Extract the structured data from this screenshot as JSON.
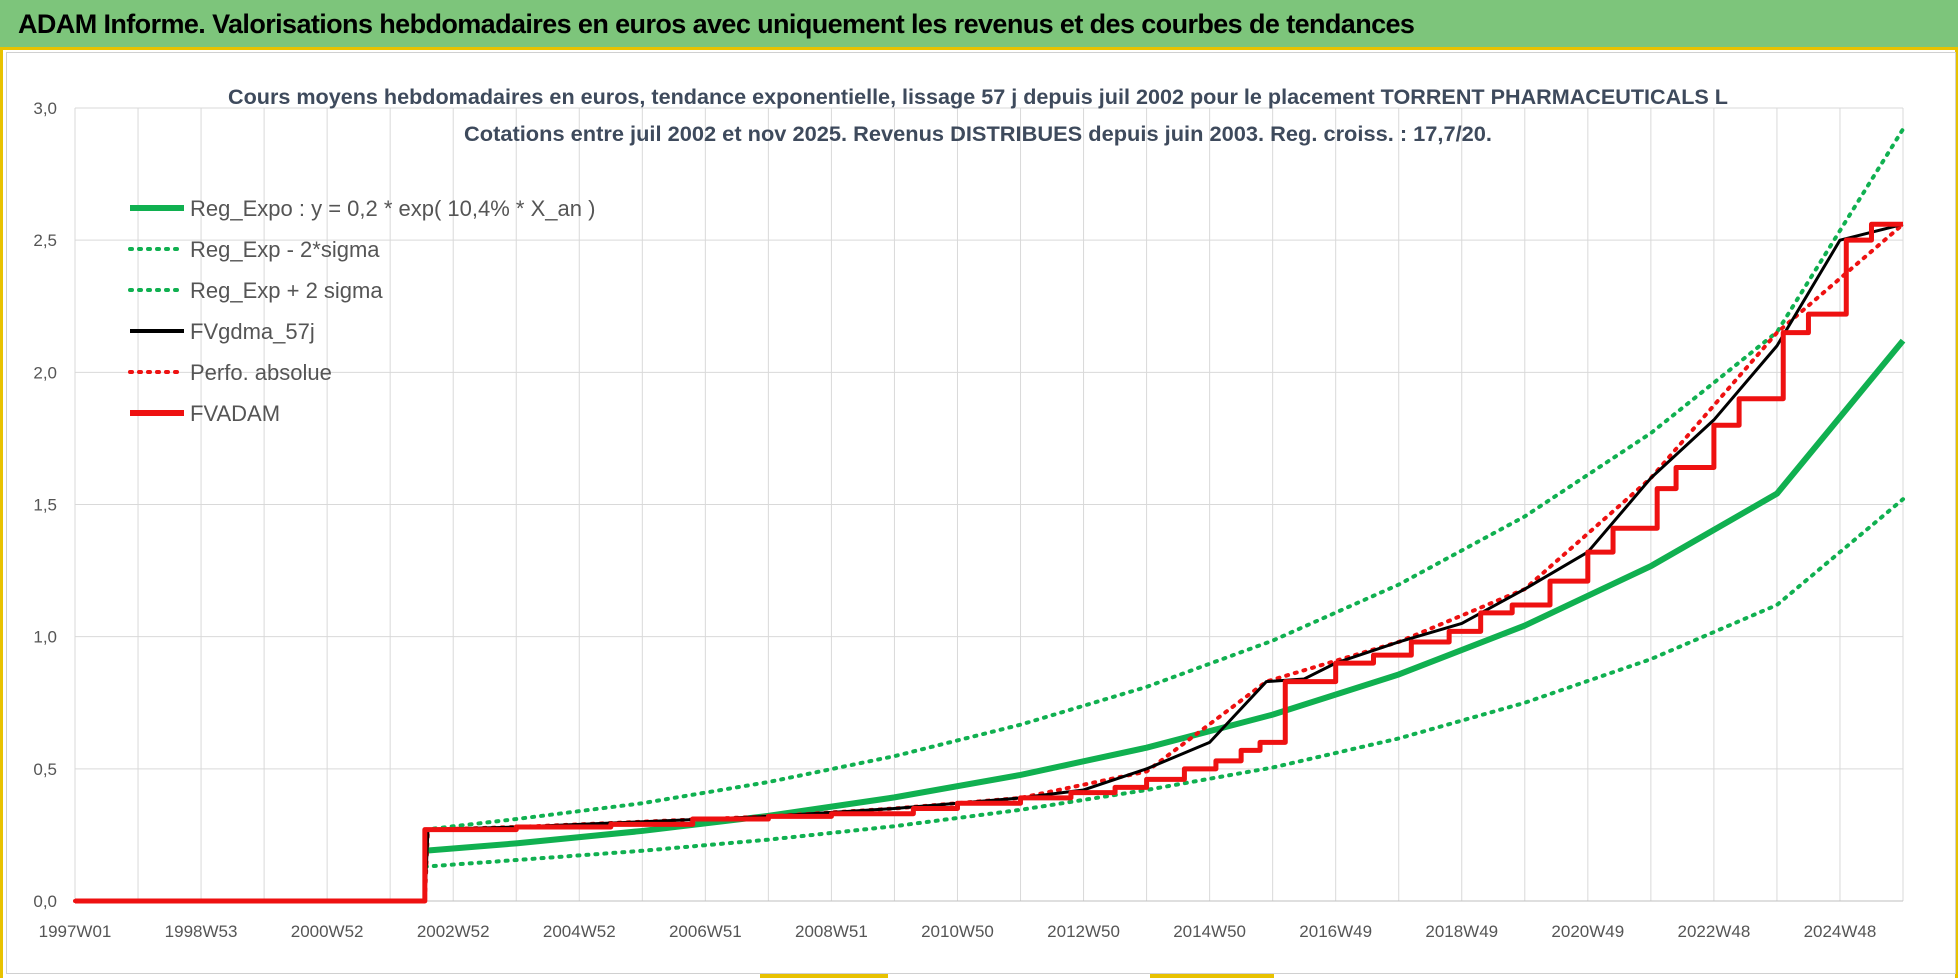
{
  "header": {
    "title": "ADAM Informe. Valorisations hebdomadaires en euros avec uniquement les revenus et des courbes de tendances"
  },
  "colors": {
    "header_bg": "#7dc57b",
    "accent_yellow": "#e8c200",
    "green": "#10b050",
    "red": "#ee1111",
    "black": "#000000",
    "title_text": "#3e4a5c",
    "grid": "#d9d9d9"
  },
  "chart_data": {
    "type": "line",
    "title": "Cours moyens hebdomadaires en euros, tendance exponentielle, lissage 57 j depuis juil 2002 pour le placement TORRENT PHARMACEUTICALS L",
    "subtitle": "Cotations entre juil 2002 et nov 2025. Revenus DISTRIBUES depuis juin 2003. Reg. croiss. : 17,7/20.",
    "xlabel": "",
    "ylabel": "",
    "x_unit": "year",
    "xlim": [
      1997.0,
      2026.0
    ],
    "ylim": [
      0,
      3.0
    ],
    "y_ticks": [
      "0,0",
      "0,5",
      "1,0",
      "1,5",
      "2,0",
      "2,5",
      "3,0"
    ],
    "y_tick_values": [
      0,
      0.5,
      1.0,
      1.5,
      2.0,
      2.5,
      3.0
    ],
    "x_tick_labels": [
      "1997W01",
      "1998W53",
      "2000W52",
      "2002W52",
      "2004W52",
      "2006W51",
      "2008W51",
      "2010W50",
      "2012W50",
      "2014W50",
      "2016W49",
      "2018W49",
      "2020W49",
      "2022W48",
      "2024W48"
    ],
    "x_tick_values": [
      1997.0,
      1999.0,
      2001.0,
      2003.0,
      2005.0,
      2007.0,
      2009.0,
      2011.0,
      2013.0,
      2015.0,
      2017.0,
      2019.0,
      2021.0,
      2023.0,
      2025.0
    ],
    "grid": true,
    "legend_position": "top-left",
    "series": [
      {
        "name": "Reg_Expo : y = 0,2 * exp( 10,4% *  X_an )",
        "style": "solid-thick",
        "color": "#10b050",
        "points": [
          [
            2002.55,
            0.19
          ],
          [
            2004,
            0.218
          ],
          [
            2006,
            0.265
          ],
          [
            2008,
            0.322
          ],
          [
            2010,
            0.392
          ],
          [
            2012,
            0.477
          ],
          [
            2014,
            0.58
          ],
          [
            2016,
            0.705
          ],
          [
            2018,
            0.857
          ],
          [
            2020,
            1.042
          ],
          [
            2022,
            1.267
          ],
          [
            2024,
            1.541
          ],
          [
            2026,
            2.12
          ]
        ]
      },
      {
        "name": "Reg_Exp - 2*sigma",
        "style": "dotted",
        "color": "#10b050",
        "points": [
          [
            2002.55,
            0.13
          ],
          [
            2004,
            0.155
          ],
          [
            2006,
            0.19
          ],
          [
            2008,
            0.232
          ],
          [
            2010,
            0.283
          ],
          [
            2012,
            0.345
          ],
          [
            2014,
            0.42
          ],
          [
            2016,
            0.505
          ],
          [
            2018,
            0.615
          ],
          [
            2020,
            0.75
          ],
          [
            2022,
            0.915
          ],
          [
            2024,
            1.12
          ],
          [
            2026,
            1.52
          ]
        ]
      },
      {
        "name": "Reg_Exp + 2 sigma",
        "style": "dotted",
        "color": "#10b050",
        "points": [
          [
            2002.55,
            0.27
          ],
          [
            2004,
            0.31
          ],
          [
            2006,
            0.37
          ],
          [
            2008,
            0.45
          ],
          [
            2010,
            0.548
          ],
          [
            2012,
            0.667
          ],
          [
            2014,
            0.81
          ],
          [
            2016,
            0.985
          ],
          [
            2018,
            1.197
          ],
          [
            2020,
            1.455
          ],
          [
            2022,
            1.77
          ],
          [
            2024,
            2.152
          ],
          [
            2026,
            2.92
          ]
        ]
      },
      {
        "name": "FVgdma_57j",
        "style": "solid-thin",
        "color": "#000000",
        "points": [
          [
            1997.0,
            0
          ],
          [
            2002.55,
            0
          ],
          [
            2002.6,
            0.27
          ],
          [
            2004,
            0.28
          ],
          [
            2006,
            0.3
          ],
          [
            2008,
            0.32
          ],
          [
            2010,
            0.35
          ],
          [
            2012,
            0.39
          ],
          [
            2013,
            0.42
          ],
          [
            2014,
            0.5
          ],
          [
            2015,
            0.6
          ],
          [
            2015.9,
            0.83
          ],
          [
            2016.5,
            0.84
          ],
          [
            2017,
            0.9
          ],
          [
            2018,
            0.98
          ],
          [
            2019,
            1.05
          ],
          [
            2020,
            1.18
          ],
          [
            2021,
            1.32
          ],
          [
            2022,
            1.6
          ],
          [
            2023,
            1.82
          ],
          [
            2024,
            2.1
          ],
          [
            2025,
            2.5
          ],
          [
            2026,
            2.56
          ]
        ]
      },
      {
        "name": "Perfo. absolue",
        "style": "dotted",
        "color": "#ee1111",
        "points": [
          [
            1997.0,
            0
          ],
          [
            2002.55,
            0
          ],
          [
            2002.6,
            0.27
          ],
          [
            2004,
            0.28
          ],
          [
            2006,
            0.3
          ],
          [
            2008,
            0.32
          ],
          [
            2010,
            0.35
          ],
          [
            2012,
            0.39
          ],
          [
            2014,
            0.49
          ],
          [
            2015.9,
            0.83
          ],
          [
            2018,
            0.98
          ],
          [
            2020,
            1.18
          ],
          [
            2022,
            1.6
          ],
          [
            2024,
            2.15
          ],
          [
            2026,
            2.56
          ]
        ]
      },
      {
        "name": "FVADAM",
        "style": "step-thick",
        "color": "#ee1111",
        "points": [
          [
            1997.0,
            0
          ],
          [
            2002.55,
            0
          ],
          [
            2002.55,
            0.27
          ],
          [
            2004.0,
            0.28
          ],
          [
            2005.5,
            0.29
          ],
          [
            2006.8,
            0.31
          ],
          [
            2008.0,
            0.32
          ],
          [
            2009.0,
            0.33
          ],
          [
            2010.3,
            0.35
          ],
          [
            2011.0,
            0.37
          ],
          [
            2012.0,
            0.39
          ],
          [
            2012.8,
            0.41
          ],
          [
            2013.5,
            0.43
          ],
          [
            2014.0,
            0.46
          ],
          [
            2014.6,
            0.5
          ],
          [
            2015.1,
            0.53
          ],
          [
            2015.5,
            0.57
          ],
          [
            2015.8,
            0.6
          ],
          [
            2016.2,
            0.83
          ],
          [
            2017.0,
            0.9
          ],
          [
            2017.6,
            0.93
          ],
          [
            2018.2,
            0.98
          ],
          [
            2018.8,
            1.02
          ],
          [
            2019.3,
            1.09
          ],
          [
            2019.8,
            1.12
          ],
          [
            2020.4,
            1.21
          ],
          [
            2021.0,
            1.32
          ],
          [
            2021.4,
            1.41
          ],
          [
            2022.1,
            1.56
          ],
          [
            2022.4,
            1.64
          ],
          [
            2023.0,
            1.8
          ],
          [
            2023.4,
            1.9
          ],
          [
            2024.1,
            2.15
          ],
          [
            2024.5,
            2.22
          ],
          [
            2025.1,
            2.5
          ],
          [
            2025.5,
            2.56
          ],
          [
            2026.0,
            2.56
          ]
        ]
      }
    ]
  }
}
